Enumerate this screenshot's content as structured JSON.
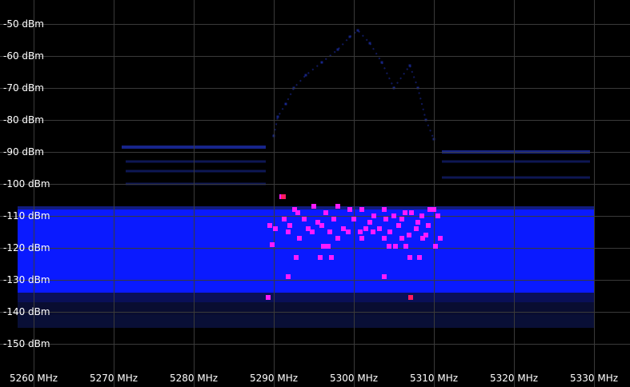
{
  "chart_data": {
    "type": "scatter",
    "title": "",
    "xlabel": "",
    "ylabel": "",
    "x_unit": "MHz",
    "y_unit": "dBm",
    "xlim": [
      5258,
      5330
    ],
    "ylim": [
      -157,
      -45
    ],
    "grid": true,
    "x_ticks": [
      {
        "value": 5260,
        "label": "5260 MHz"
      },
      {
        "value": 5270,
        "label": "5270 MHz"
      },
      {
        "value": 5280,
        "label": "5280 MHz"
      },
      {
        "value": 5290,
        "label": "5290 MHz"
      },
      {
        "value": 5300,
        "label": "5300 MHz"
      },
      {
        "value": 5310,
        "label": "5310 MHz"
      },
      {
        "value": 5320,
        "label": "5320 MHz"
      },
      {
        "value": 5330,
        "label": "5330 MHz"
      }
    ],
    "y_ticks": [
      {
        "value": -50,
        "label": "-50 dBm"
      },
      {
        "value": -60,
        "label": "-60 dBm"
      },
      {
        "value": -70,
        "label": "-70 dBm"
      },
      {
        "value": -80,
        "label": "-80 dBm"
      },
      {
        "value": -90,
        "label": "-90 dBm"
      },
      {
        "value": -100,
        "label": "-100 dBm"
      },
      {
        "value": -110,
        "label": "-110 dBm"
      },
      {
        "value": -120,
        "label": "-120 dBm"
      },
      {
        "value": -130,
        "label": "-130 dBm"
      },
      {
        "value": -140,
        "label": "-140 dBm"
      },
      {
        "value": -150,
        "label": "-150 dBm"
      }
    ],
    "colors": {
      "background": "#000000",
      "grid": "#3a3a3a",
      "noise_floor": "#0a1aff",
      "noise_edge": "#1a2dd6",
      "dark_band": "#0a0f3a",
      "spectral_trace": "#1a2a9a",
      "peak_points": "#ff1aff",
      "red_points": "#ff1a60",
      "labels": "#ffffff"
    },
    "noise_floor": {
      "x_range": [
        5258,
        5330
      ],
      "top_dbm": -108,
      "bottom_dbm": -137,
      "dark_band_dbm": [
        -134,
        -141
      ],
      "fringe_bottom_dbm": -145
    },
    "series": [
      {
        "kind": "upper_shoulder",
        "points": [
          {
            "x": 5271,
            "y": -88.5
          },
          {
            "x": 5272,
            "y": -88.5
          },
          {
            "x": 5275,
            "y": -88.5
          },
          {
            "x": 5280,
            "y": -88.5
          },
          {
            "x": 5285,
            "y": -88.5
          },
          {
            "x": 5289,
            "y": -88.5
          },
          {
            "x": 5311,
            "y": -90
          },
          {
            "x": 5315,
            "y": -90
          },
          {
            "x": 5320,
            "y": -90
          },
          {
            "x": 5325,
            "y": -90
          },
          {
            "x": 5329.5,
            "y": -90
          }
        ]
      },
      {
        "kind": "shoulder_layers",
        "points": [
          {
            "x": 5271.5,
            "y": -93
          },
          {
            "x": 5289,
            "y": -93
          },
          {
            "x": 5271.5,
            "y": -96
          },
          {
            "x": 5289,
            "y": -96
          },
          {
            "x": 5271.5,
            "y": -100
          },
          {
            "x": 5289,
            "y": -100
          },
          {
            "x": 5311,
            "y": -93
          },
          {
            "x": 5329.5,
            "y": -93
          },
          {
            "x": 5311,
            "y": -98
          },
          {
            "x": 5329.5,
            "y": -98
          }
        ]
      },
      {
        "kind": "signal_envelope",
        "points": [
          {
            "x": 5290,
            "y": -85
          },
          {
            "x": 5290.5,
            "y": -79
          },
          {
            "x": 5291.5,
            "y": -75
          },
          {
            "x": 5292.5,
            "y": -70
          },
          {
            "x": 5294,
            "y": -66
          },
          {
            "x": 5296,
            "y": -62
          },
          {
            "x": 5298,
            "y": -58
          },
          {
            "x": 5299.5,
            "y": -54
          },
          {
            "x": 5300.5,
            "y": -52
          },
          {
            "x": 5302,
            "y": -56
          },
          {
            "x": 5303.5,
            "y": -62
          },
          {
            "x": 5305,
            "y": -70
          },
          {
            "x": 5307,
            "y": -63
          },
          {
            "x": 5308,
            "y": -70
          },
          {
            "x": 5309,
            "y": -80
          },
          {
            "x": 5310,
            "y": -86
          }
        ]
      },
      {
        "kind": "peak_points",
        "points": [
          {
            "x": 5291,
            "y": -104
          },
          {
            "x": 5292.6,
            "y": -108
          },
          {
            "x": 5293,
            "y": -109
          },
          {
            "x": 5295,
            "y": -107
          },
          {
            "x": 5296.5,
            "y": -109
          },
          {
            "x": 5298,
            "y": -107
          },
          {
            "x": 5299.5,
            "y": -108
          },
          {
            "x": 5301,
            "y": -108
          },
          {
            "x": 5302.5,
            "y": -110
          },
          {
            "x": 5303.8,
            "y": -108
          },
          {
            "x": 5305,
            "y": -110
          },
          {
            "x": 5306.4,
            "y": -109
          },
          {
            "x": 5307.2,
            "y": -109
          },
          {
            "x": 5308.5,
            "y": -110
          },
          {
            "x": 5309.5,
            "y": -108
          },
          {
            "x": 5310,
            "y": -108
          },
          {
            "x": 5291.3,
            "y": -111
          },
          {
            "x": 5293.8,
            "y": -111
          },
          {
            "x": 5295.5,
            "y": -112
          },
          {
            "x": 5297.5,
            "y": -111
          },
          {
            "x": 5300,
            "y": -111
          },
          {
            "x": 5302,
            "y": -112
          },
          {
            "x": 5304,
            "y": -111
          },
          {
            "x": 5306,
            "y": -111
          },
          {
            "x": 5308,
            "y": -112
          },
          {
            "x": 5310.5,
            "y": -110
          },
          {
            "x": 5289.5,
            "y": -113
          },
          {
            "x": 5292,
            "y": -113
          },
          {
            "x": 5294.3,
            "y": -114
          },
          {
            "x": 5296,
            "y": -113
          },
          {
            "x": 5298.7,
            "y": -114
          },
          {
            "x": 5301.5,
            "y": -114
          },
          {
            "x": 5303.2,
            "y": -114
          },
          {
            "x": 5305.6,
            "y": -113
          },
          {
            "x": 5307.8,
            "y": -114
          },
          {
            "x": 5309.3,
            "y": -113
          },
          {
            "x": 5290.2,
            "y": -114
          },
          {
            "x": 5291.8,
            "y": -115
          },
          {
            "x": 5294.8,
            "y": -115
          },
          {
            "x": 5297,
            "y": -115
          },
          {
            "x": 5299.3,
            "y": -115
          },
          {
            "x": 5300.8,
            "y": -115
          },
          {
            "x": 5302.4,
            "y": -115
          },
          {
            "x": 5304.5,
            "y": -115
          },
          {
            "x": 5306.9,
            "y": -116
          },
          {
            "x": 5309,
            "y": -116
          },
          {
            "x": 5293.2,
            "y": -117
          },
          {
            "x": 5298,
            "y": -117
          },
          {
            "x": 5301,
            "y": -117
          },
          {
            "x": 5303.8,
            "y": -117
          },
          {
            "x": 5306,
            "y": -117
          },
          {
            "x": 5308.6,
            "y": -117
          },
          {
            "x": 5310.8,
            "y": -117
          },
          {
            "x": 5289.8,
            "y": -119
          },
          {
            "x": 5296.2,
            "y": -119.5
          },
          {
            "x": 5296.8,
            "y": -119.5
          },
          {
            "x": 5304.4,
            "y": -119.5
          },
          {
            "x": 5305.2,
            "y": -119.5
          },
          {
            "x": 5306.5,
            "y": -119.5
          },
          {
            "x": 5310.2,
            "y": -119.5
          },
          {
            "x": 5292.8,
            "y": -123
          },
          {
            "x": 5295.8,
            "y": -123
          },
          {
            "x": 5297.2,
            "y": -123
          },
          {
            "x": 5307,
            "y": -123
          },
          {
            "x": 5308.2,
            "y": -123
          },
          {
            "x": 5291.8,
            "y": -129
          },
          {
            "x": 5303.8,
            "y": -129
          },
          {
            "x": 5289.3,
            "y": -135.5
          }
        ]
      },
      {
        "kind": "red_points",
        "points": [
          {
            "x": 5291.2,
            "y": -104
          },
          {
            "x": 5307.1,
            "y": -135.5
          }
        ]
      }
    ]
  }
}
